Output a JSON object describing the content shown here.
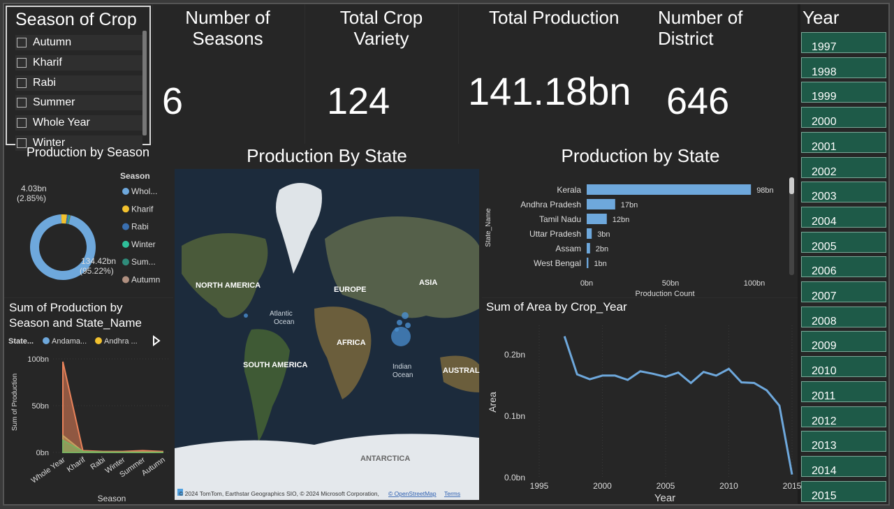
{
  "season_slicer": {
    "title": "Season of Crop",
    "items": [
      "Autumn",
      "Kharif",
      "Rabi",
      "Summer",
      "Whole Year",
      "Winter"
    ]
  },
  "kpis": {
    "seasons": {
      "title": "Number of Seasons",
      "value": "6"
    },
    "crop_variety": {
      "title": "Total Crop Variety",
      "value": "124"
    },
    "production": {
      "title": "Total Production",
      "value": "141.18bn"
    },
    "district": {
      "title": "Number of District",
      "value": "646"
    }
  },
  "year_slicer": {
    "title": "Year",
    "years": [
      "1997",
      "1998",
      "1999",
      "2000",
      "2001",
      "2002",
      "2003",
      "2004",
      "2005",
      "2006",
      "2007",
      "2008",
      "2009",
      "2010",
      "2011",
      "2012",
      "2013",
      "2014",
      "2015"
    ]
  },
  "donut": {
    "title": "Production by Season",
    "legend_title": "Season",
    "legend": [
      {
        "label": "Whol...",
        "color": "#6ea8dc"
      },
      {
        "label": "Kharif",
        "color": "#f2c12e"
      },
      {
        "label": "Rabi",
        "color": "#3a6fb0"
      },
      {
        "label": "Winter",
        "color": "#2fbf9a"
      },
      {
        "label": "Sum...",
        "color": "#2f8b7a"
      },
      {
        "label": "Autumn",
        "color": "#b09080"
      }
    ],
    "label_small": "4.03bn",
    "label_small_pct": "(2.85%)",
    "label_big": "134.42bn",
    "label_big_pct": "(95.22%)"
  },
  "map": {
    "title": "Production By State",
    "labels": {
      "na": "NORTH AMERICA",
      "eu": "EUROPE",
      "asia": "ASIA",
      "atl1": "Atlantic",
      "atl2": "Ocean",
      "af": "AFRICA",
      "sa": "SOUTH AMERICA",
      "ind1": "Indian",
      "ind2": "Ocean",
      "aus": "AUSTRAL",
      "ant": "ANTARCTICA"
    },
    "attribution": "© 2024 TomTom, Earthstar Geographics SIO, © 2024 Microsoft Corporation,",
    "osm_link": "© OpenStreetMap",
    "terms_link": "Terms"
  },
  "chart_data": [
    {
      "type": "bar",
      "title": "Production by State",
      "xlabel": "Production Count",
      "ylabel": "State_Name",
      "categories": [
        "Kerala",
        "Andhra Pradesh",
        "Tamil Nadu",
        "Uttar Pradesh",
        "Assam",
        "West Bengal"
      ],
      "values": [
        98,
        17,
        12,
        3,
        2,
        1
      ],
      "value_labels": [
        "98bn",
        "17bn",
        "12bn",
        "3bn",
        "2bn",
        "1bn"
      ],
      "xlim": [
        0,
        110
      ],
      "x_ticks": [
        "0bn",
        "50bn",
        "100bn"
      ],
      "color": "#6ea8dc"
    },
    {
      "type": "line",
      "title": "Sum of Area by Crop_Year",
      "xlabel": "Year",
      "ylabel": "Area",
      "x": [
        1997,
        1998,
        1999,
        2000,
        2001,
        2002,
        2003,
        2004,
        2005,
        2006,
        2007,
        2008,
        2009,
        2010,
        2011,
        2012,
        2013,
        2014,
        2015
      ],
      "values": [
        0.23,
        0.168,
        0.16,
        0.166,
        0.166,
        0.159,
        0.173,
        0.169,
        0.164,
        0.171,
        0.154,
        0.172,
        0.166,
        0.177,
        0.155,
        0.154,
        0.142,
        0.117,
        0.005
      ],
      "xlim": [
        1993,
        2016
      ],
      "ylim": [
        0,
        0.25
      ],
      "x_ticks": [
        "1995",
        "2000",
        "2005",
        "2010",
        "2015"
      ],
      "y_ticks": [
        "0.0bn",
        "0.1bn",
        "0.2bn"
      ],
      "color": "#6ea8dc"
    },
    {
      "type": "area",
      "title": "Sum of Production by Season and State_Name",
      "legend_title": "State...",
      "legend": [
        {
          "label": "Andama...",
          "color": "#6ea8dc"
        },
        {
          "label": "Andhra ...",
          "color": "#f2c12e"
        }
      ],
      "xlabel": "Season",
      "ylabel": "Sum of Production",
      "categories": [
        "Whole Year",
        "Kharif",
        "Rabi",
        "Winter",
        "Summer",
        "Autumn"
      ],
      "series": [
        {
          "color": "#e8825a",
          "values": [
            97,
            2,
            1,
            1,
            2,
            1
          ]
        },
        {
          "color": "#c8a060",
          "values": [
            18,
            1,
            0.5,
            0.3,
            0.3,
            0.2
          ]
        },
        {
          "color": "#7ab060",
          "values": [
            13,
            1,
            0.4,
            0.2,
            0.2,
            0.1
          ]
        }
      ],
      "y_ticks": [
        "0bn",
        "50bn",
        "100bn"
      ],
      "ylim": [
        0,
        100
      ]
    }
  ],
  "donut_data": {
    "values": [
      95.22,
      2.85,
      0.9,
      0.5,
      0.3,
      0.23
    ]
  }
}
